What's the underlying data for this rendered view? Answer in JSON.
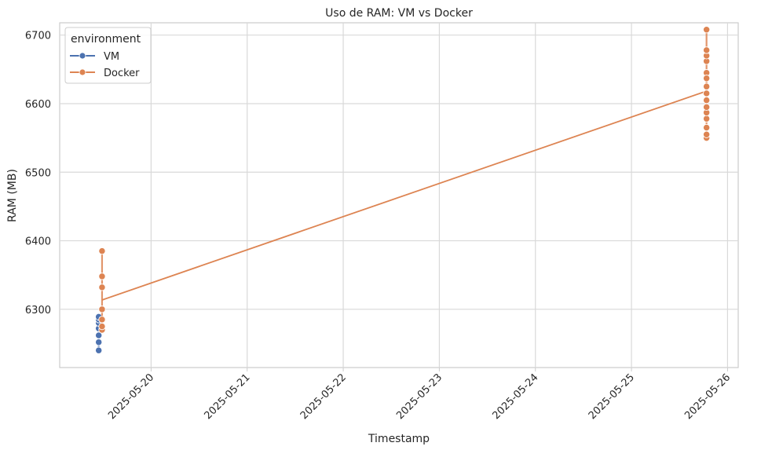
{
  "chart_data": {
    "type": "line",
    "title": "Uso de RAM: VM vs Docker",
    "xlabel": "Timestamp",
    "ylabel": "RAM (MB)",
    "x_type": "date",
    "xlim": [
      "2025-05-19 01:10",
      "2025-05-26 02:40"
    ],
    "ylim": [
      6215,
      6718
    ],
    "x_ticks": [
      "2025-05-20",
      "2025-05-21",
      "2025-05-22",
      "2025-05-23",
      "2025-05-24",
      "2025-05-25",
      "2025-05-26"
    ],
    "y_ticks": [
      6300,
      6400,
      6500,
      6600,
      6700
    ],
    "grid": true,
    "legend": {
      "title": "environment",
      "position": "top-left"
    },
    "series": [
      {
        "name": "VM",
        "color": "#4c72b0",
        "points": [
          [
            "2025-05-19 10:55",
            6240
          ],
          [
            "2025-05-19 10:55",
            6252
          ],
          [
            "2025-05-19 10:55",
            6262
          ],
          [
            "2025-05-19 10:55",
            6272
          ],
          [
            "2025-05-19 10:55",
            6280
          ],
          [
            "2025-05-19 10:55",
            6285
          ],
          [
            "2025-05-19 10:55",
            6289
          ]
        ]
      },
      {
        "name": "Docker",
        "color": "#dd8452",
        "points": [
          [
            "2025-05-19 11:45",
            6270
          ],
          [
            "2025-05-19 11:45",
            6275
          ],
          [
            "2025-05-19 11:45",
            6285
          ],
          [
            "2025-05-19 11:45",
            6300
          ],
          [
            "2025-05-19 11:45",
            6332
          ],
          [
            "2025-05-19 11:45",
            6348
          ],
          [
            "2025-05-19 11:45",
            6385
          ],
          [
            "2025-05-25 18:45",
            6645
          ],
          [
            "2025-05-25 18:45",
            6550
          ],
          [
            "2025-05-25 18:45",
            6555
          ],
          [
            "2025-05-25 18:45",
            6565
          ],
          [
            "2025-05-25 18:45",
            6578
          ],
          [
            "2025-05-25 18:45",
            6587
          ],
          [
            "2025-05-25 18:45",
            6595
          ],
          [
            "2025-05-25 18:45",
            6605
          ],
          [
            "2025-05-25 18:45",
            6615
          ],
          [
            "2025-05-25 18:45",
            6625
          ],
          [
            "2025-05-25 18:45",
            6637
          ],
          [
            "2025-05-25 18:45",
            6662
          ],
          [
            "2025-05-25 18:45",
            6670
          ],
          [
            "2025-05-25 18:45",
            6678
          ],
          [
            "2025-05-25 18:45",
            6708
          ]
        ]
      }
    ]
  }
}
